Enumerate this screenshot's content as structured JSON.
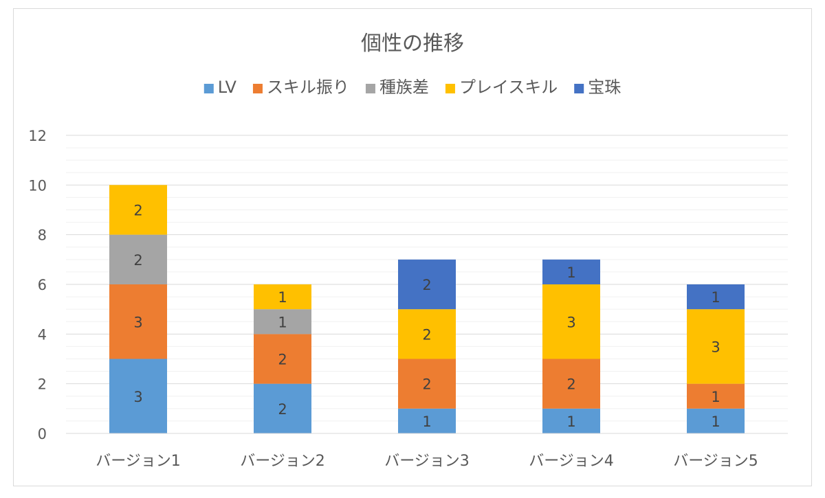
{
  "chart_data": {
    "type": "bar",
    "stacked": true,
    "title": "個性の推移",
    "categories": [
      "バージョン1",
      "バージョン2",
      "バージョン3",
      "バージョン4",
      "バージョン5"
    ],
    "series": [
      {
        "name": "LV",
        "color": "#5b9bd5",
        "values": [
          3,
          2,
          1,
          1,
          1
        ]
      },
      {
        "name": "スキル振り",
        "color": "#ed7d31",
        "values": [
          3,
          2,
          2,
          2,
          1
        ]
      },
      {
        "name": "種族差",
        "color": "#a5a5a5",
        "values": [
          2,
          1,
          0,
          0,
          0
        ]
      },
      {
        "name": "プレイスキル",
        "color": "#ffc000",
        "values": [
          2,
          1,
          2,
          3,
          3
        ]
      },
      {
        "name": "宝珠",
        "color": "#4472c4",
        "values": [
          0,
          0,
          2,
          1,
          1
        ]
      }
    ],
    "ylim": [
      0,
      12
    ],
    "yticks": [
      0,
      2,
      4,
      6,
      8,
      10,
      12
    ],
    "grid": true,
    "legend_position": "top"
  }
}
